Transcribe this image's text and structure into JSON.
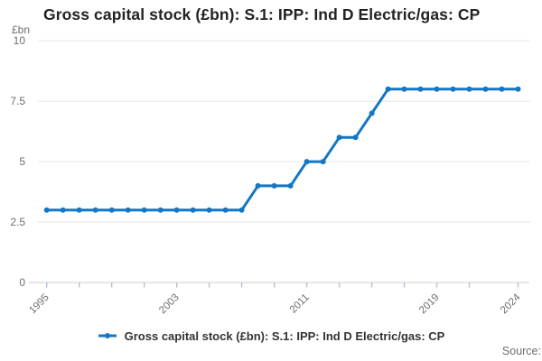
{
  "title": "Gross capital stock (£bn): S.1: IPP: Ind D Electric/gas: CP",
  "y_axis_unit": "£bn",
  "legend": {
    "label": "Gross capital stock (£bn): S.1: IPP: Ind D Electric/gas: CP",
    "marker": "line-with-dot"
  },
  "source_label": "Source:",
  "colors": {
    "series_line": "#1377c4",
    "grid_line": "#e6e6e6",
    "axis_line": "#cccccc",
    "tick_mark": "#b0c0da",
    "muted_text": "#6e6e6e",
    "title_text": "#232323",
    "legend_text": "#333333",
    "background": "#ffffff"
  },
  "chart_data": {
    "type": "line",
    "title": "Gross capital stock (£bn): S.1: IPP: Ind D Electric/gas: CP",
    "xlabel": "",
    "ylabel": "£bn",
    "ylim": [
      0,
      10
    ],
    "y_ticks": [
      0,
      2.5,
      5,
      7.5,
      10
    ],
    "y_tick_labels": [
      "0",
      "2.5",
      "5",
      "7.5",
      "10"
    ],
    "x": [
      1995,
      1996,
      1997,
      1998,
      1999,
      2000,
      2001,
      2002,
      2003,
      2004,
      2005,
      2006,
      2007,
      2008,
      2009,
      2010,
      2011,
      2012,
      2013,
      2014,
      2015,
      2016,
      2017,
      2018,
      2019,
      2020,
      2021,
      2022,
      2023,
      2024
    ],
    "series": [
      {
        "name": "Gross capital stock (£bn): S.1: IPP: Ind D Electric/gas: CP",
        "values": [
          3,
          3,
          3,
          3,
          3,
          3,
          3,
          3,
          3,
          3,
          3,
          3,
          3,
          4,
          4,
          4,
          5,
          5,
          6,
          6,
          7,
          8,
          8,
          8,
          8,
          8,
          8,
          8,
          8,
          8
        ]
      }
    ],
    "x_ticks": [
      1995,
      1997,
      1999,
      2001,
      2003,
      2005,
      2007,
      2009,
      2011,
      2013,
      2015,
      2017,
      2019,
      2021,
      2024
    ],
    "x_labeled_ticks": [
      1995,
      2003,
      2011,
      2019,
      2024
    ],
    "grid": "horizontal-only",
    "legend_position": "bottom",
    "markers": "dot-every-point"
  }
}
